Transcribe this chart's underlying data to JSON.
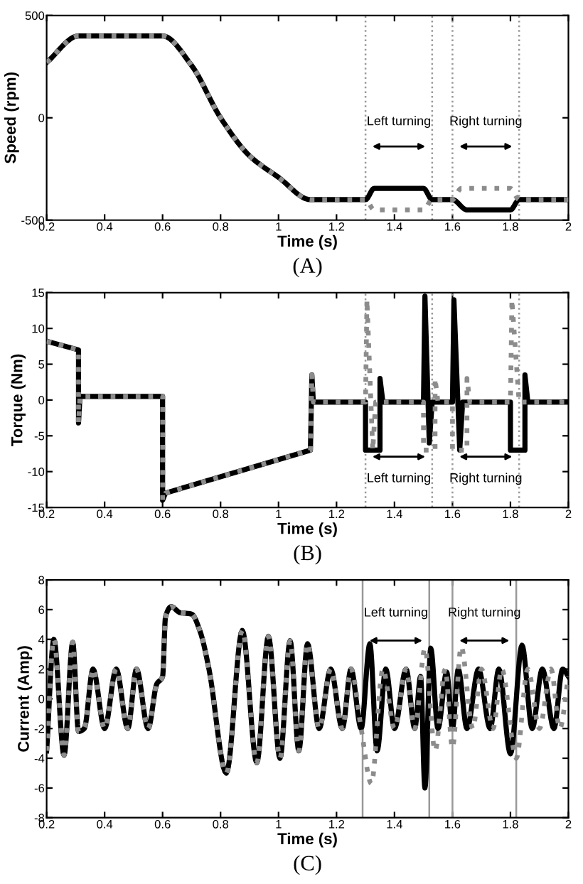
{
  "chart_data": [
    {
      "type": "line",
      "xlabel": "Time (s)",
      "ylabel": "Speed (rpm)",
      "xlim": [
        0.2,
        2
      ],
      "ylim": [
        -500,
        500
      ],
      "xticks": [
        0.2,
        0.4,
        0.6,
        0.8,
        1,
        1.2,
        1.4,
        1.6,
        1.8,
        2
      ],
      "yticks": [
        -500,
        0,
        500
      ],
      "grid": false,
      "series": [
        {
          "color": "#000000",
          "line_style": "solid",
          "x": [
            0.2,
            0.31,
            0.6,
            0.7,
            0.8,
            0.9,
            1.0,
            1.11,
            1.3,
            1.33,
            1.5,
            1.53,
            1.6,
            1.65,
            1.8,
            1.83,
            2.0
          ],
          "values": [
            270,
            400,
            400,
            256,
            0,
            -186,
            -291,
            -400,
            -400,
            -345,
            -345,
            -400,
            -400,
            -450,
            -450,
            -400,
            -400
          ]
        },
        {
          "color": "#8c8c8c",
          "line_style": "dotted",
          "x": [
            0.2,
            0.31,
            0.6,
            0.7,
            0.8,
            0.9,
            1.0,
            1.11,
            1.3,
            1.33,
            1.5,
            1.53,
            1.6,
            1.63,
            1.8,
            1.83,
            2.0
          ],
          "values": [
            270,
            400,
            400,
            256,
            0,
            -186,
            -291,
            -400,
            -400,
            -450,
            -450,
            -400,
            -400,
            -345,
            -345,
            -400,
            -400
          ]
        }
      ],
      "ref_lines": [
        {
          "axis": "x",
          "value": 1.3,
          "color": "#999999",
          "line_style": "dotted"
        },
        {
          "axis": "x",
          "value": 1.53,
          "color": "#999999",
          "line_style": "dotted"
        },
        {
          "axis": "x",
          "value": 1.6,
          "color": "#999999",
          "line_style": "dotted"
        },
        {
          "axis": "x",
          "value": 1.83,
          "color": "#999999",
          "line_style": "dotted"
        }
      ],
      "annotations": [
        "Left turning",
        "Right turning",
        "(A)"
      ]
    },
    {
      "type": "line",
      "xlabel": "Time (s)",
      "ylabel": "Torque (Nm)",
      "xlim": [
        0.2,
        2
      ],
      "ylim": [
        -15,
        15
      ],
      "xticks": [
        0.2,
        0.4,
        0.6,
        0.8,
        1,
        1.2,
        1.4,
        1.6,
        1.8,
        2
      ],
      "yticks": [
        -15,
        -10,
        -5,
        0,
        5,
        10,
        15
      ],
      "grid": false,
      "series": [
        {
          "color": "#000000",
          "line_style": "solid",
          "x": [
            0.2,
            0.31,
            0.31,
            0.315,
            0.6,
            0.6,
            0.61,
            1.11,
            1.115,
            1.12,
            1.3,
            1.3,
            1.35,
            1.35,
            1.36,
            1.5,
            1.505,
            1.52,
            1.53,
            1.6,
            1.605,
            1.625,
            1.635,
            1.8,
            1.8,
            1.85,
            1.85,
            1.86,
            2.0
          ],
          "values": [
            8.2,
            7,
            -3.2,
            0.5,
            0.5,
            -14,
            -13,
            -7,
            3.5,
            -0.3,
            -0.3,
            -7,
            -7,
            3,
            -0.3,
            -0.3,
            14.5,
            -6,
            -0.3,
            -0.3,
            14,
            -7,
            -0.3,
            -0.3,
            -7,
            -7,
            3.5,
            -0.3,
            -0.3
          ]
        },
        {
          "color": "#8c8c8c",
          "line_style": "dotted",
          "x": [
            0.2,
            0.31,
            0.31,
            0.315,
            0.6,
            0.6,
            0.61,
            1.11,
            1.115,
            1.12,
            1.3,
            1.305,
            1.325,
            1.335,
            1.5,
            1.5,
            1.54,
            1.54,
            1.55,
            1.6,
            1.6,
            1.65,
            1.65,
            1.66,
            1.8,
            1.805,
            1.825,
            1.83,
            2.0
          ],
          "values": [
            8.2,
            7,
            -3.2,
            0.5,
            0.5,
            -14,
            -13,
            -7,
            3.5,
            -0.3,
            -0.3,
            14,
            -7,
            -0.3,
            -0.3,
            -7,
            -7,
            3,
            -0.3,
            -0.3,
            -7,
            -7,
            3,
            -0.3,
            -0.3,
            14,
            2.5,
            -0.3,
            -0.3
          ]
        }
      ],
      "ref_lines": [
        {
          "axis": "x",
          "value": 1.3,
          "color": "#999999",
          "line_style": "dotted"
        },
        {
          "axis": "x",
          "value": 1.53,
          "color": "#999999",
          "line_style": "dotted"
        },
        {
          "axis": "x",
          "value": 1.6,
          "color": "#999999",
          "line_style": "dotted"
        },
        {
          "axis": "x",
          "value": 1.83,
          "color": "#999999",
          "line_style": "dotted"
        }
      ],
      "annotations": [
        "Left turning",
        "Right turning",
        "(B)"
      ]
    },
    {
      "type": "line",
      "xlabel": "Time (s)",
      "ylabel": "Current (Amp)",
      "xlim": [
        0.2,
        2
      ],
      "ylim": [
        -8,
        8
      ],
      "xticks": [
        0.2,
        0.4,
        0.6,
        0.8,
        1,
        1.2,
        1.4,
        1.6,
        1.8,
        2
      ],
      "yticks": [
        -8,
        -6,
        -4,
        -2,
        0,
        2,
        4,
        6,
        8
      ],
      "grid": false,
      "series": [
        {
          "color": "#000000",
          "line_style": "solid",
          "x": [
            0.2,
            0.225,
            0.26,
            0.29,
            0.31,
            0.33,
            0.36,
            0.4,
            0.44,
            0.48,
            0.51,
            0.55,
            0.58,
            0.6,
            0.61,
            0.63,
            0.66,
            0.7,
            0.73,
            0.76,
            0.82,
            0.875,
            0.925,
            0.965,
            1.005,
            1.04,
            1.07,
            1.1,
            1.14,
            1.18,
            1.22,
            1.25,
            1.285,
            1.315,
            1.34,
            1.37,
            1.4,
            1.44,
            1.47,
            1.49,
            1.505,
            1.525,
            1.55,
            1.58,
            1.6,
            1.62,
            1.65,
            1.69,
            1.73,
            1.76,
            1.8,
            1.84,
            1.875,
            1.91,
            1.95,
            1.98,
            2.0
          ],
          "values": [
            -3.5,
            4,
            -3.8,
            3.8,
            -2.2,
            -2,
            2,
            -2,
            2,
            -2,
            2,
            -2,
            1,
            1.5,
            5.5,
            6.2,
            5.8,
            5.7,
            4.5,
            2,
            -5,
            4.6,
            -4.3,
            4.2,
            -4,
            3.9,
            -3.5,
            3.7,
            -2,
            2,
            -2,
            2,
            -2,
            3.7,
            -3.5,
            2,
            -2,
            2,
            -2,
            1.5,
            -6,
            3.4,
            -2,
            1.8,
            -2,
            2,
            -2,
            2,
            -2,
            2,
            -3.7,
            3.6,
            -2,
            2,
            -2,
            2,
            1.5
          ]
        },
        {
          "color": "#8c8c8c",
          "line_style": "dotted",
          "x": [
            0.2,
            0.225,
            0.26,
            0.29,
            0.31,
            0.33,
            0.36,
            0.4,
            0.44,
            0.48,
            0.51,
            0.55,
            0.58,
            0.6,
            0.61,
            0.63,
            0.66,
            0.7,
            0.73,
            0.76,
            0.82,
            0.875,
            0.925,
            0.965,
            1.005,
            1.04,
            1.07,
            1.1,
            1.14,
            1.18,
            1.22,
            1.25,
            1.285,
            1.32,
            1.36,
            1.4,
            1.44,
            1.47,
            1.505,
            1.54,
            1.575,
            1.6,
            1.63,
            1.67,
            1.7,
            1.74,
            1.77,
            1.82,
            1.86,
            1.9,
            1.94,
            1.97,
            2.0
          ],
          "values": [
            -3.5,
            4,
            -3.8,
            3.8,
            -2.2,
            -2,
            2,
            -2,
            2,
            -2,
            2,
            -2,
            1,
            1.5,
            5.5,
            6.2,
            5.8,
            5.7,
            4.5,
            2,
            -5,
            4.6,
            -4.3,
            4.2,
            -4,
            3.9,
            -3.5,
            3.7,
            -2,
            2,
            -2,
            2,
            -2,
            -5.7,
            2,
            -2,
            2,
            -2,
            3.4,
            -3.5,
            2,
            -3.3,
            3.5,
            -2,
            2,
            -2,
            2,
            -4,
            2,
            -2,
            2,
            -2,
            1.5
          ]
        }
      ],
      "ref_lines": [
        {
          "axis": "x",
          "value": 1.29,
          "color": "#999999",
          "line_style": "solid"
        },
        {
          "axis": "x",
          "value": 1.52,
          "color": "#999999",
          "line_style": "solid"
        },
        {
          "axis": "x",
          "value": 1.6,
          "color": "#999999",
          "line_style": "solid"
        },
        {
          "axis": "x",
          "value": 1.82,
          "color": "#999999",
          "line_style": "solid"
        }
      ],
      "annotations": [
        "Left turning",
        "Right turning",
        "(C)"
      ]
    }
  ]
}
